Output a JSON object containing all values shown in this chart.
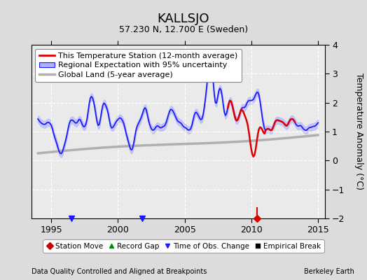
{
  "title": "KALLSJO",
  "subtitle": "57.230 N, 12.700 E (Sweden)",
  "ylabel": "Temperature Anomaly (°C)",
  "xlabel_left": "Data Quality Controlled and Aligned at Breakpoints",
  "xlabel_right": "Berkeley Earth",
  "xlim": [
    1993.5,
    2015.5
  ],
  "ylim": [
    -2,
    4
  ],
  "yticks": [
    -2,
    -1,
    0,
    1,
    2,
    3,
    4
  ],
  "xticks": [
    1995,
    2000,
    2005,
    2010,
    2015
  ],
  "bg_color": "#dcdcdc",
  "plot_bg_color": "#eaeaea",
  "grid_color": "#ffffff",
  "title_fontsize": 13,
  "subtitle_fontsize": 9,
  "blue_color": "#1a1aff",
  "blue_fill_color": "#b0b0ff",
  "red_color": "#dd0000",
  "gray_color": "#b0b0b0",
  "legend_fontsize": 8,
  "tick_fontsize": 9
}
